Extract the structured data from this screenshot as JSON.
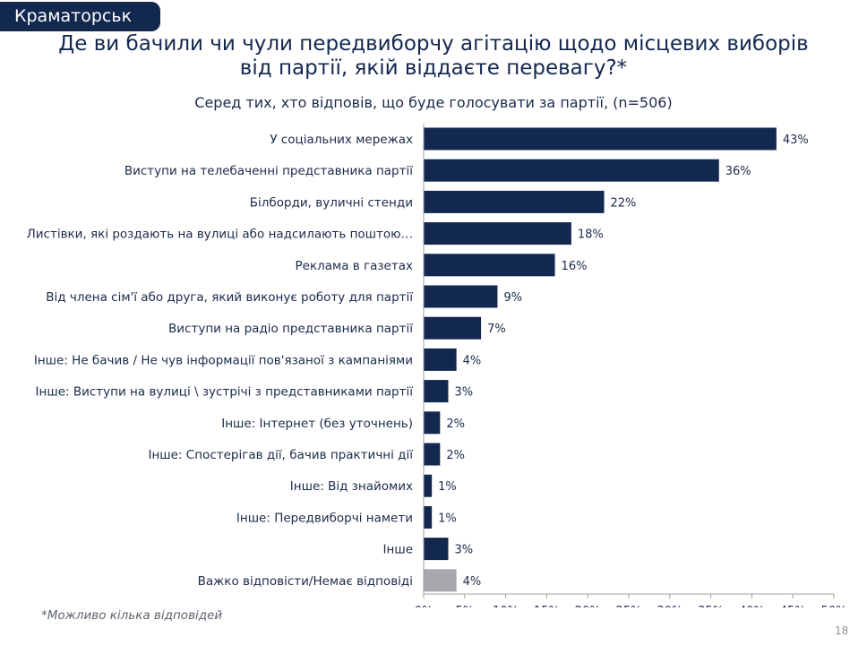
{
  "header": {
    "city": "Краматорськ",
    "title_line1": "Де ви бачили чи чули передвиборчу агітацію щодо місцевих виборів",
    "title_line2": "від партії, якій віддаєте перевагу?*",
    "subtitle": "Серед тих, хто відповів, що буде голосувати за партії, (n=506)"
  },
  "footnote": "*Можливо кілька відповідей",
  "page_number": "18",
  "chart_data": {
    "type": "bar",
    "orientation": "horizontal",
    "categories": [
      "У соціальних мережах",
      "Виступи на телебаченні представника партії",
      "Білборди, вуличні стенди",
      "Листівки, які роздають на вулиці або надсилають поштою…",
      "Реклама в газетах",
      "Від члена сім'ї або друга, який виконує роботу для партії",
      "Виступи на радіо представника партії",
      "Інше: Не бачив / Не чув інформації пов'язаної з кампаніями",
      "Інше: Виступи на вулиці \\ зустрічі з представниками партії",
      "Інше: Інтернет (без уточнень)",
      "Інше: Спостерігав дії, бачив практичні дії",
      "Інше: Від знайомих",
      "Інше: Передвиборчі намети",
      "Інше",
      "Важко відповісти/Немає відповіді"
    ],
    "values": [
      43,
      36,
      22,
      18,
      16,
      9,
      7,
      4,
      3,
      2,
      2,
      1,
      1,
      3,
      4
    ],
    "value_labels": [
      "43%",
      "36%",
      "22%",
      "18%",
      "16%",
      "9%",
      "7%",
      "4%",
      "3%",
      "2%",
      "2%",
      "1%",
      "1%",
      "3%",
      "4%"
    ],
    "bar_colors": [
      "#13284f",
      "#13284f",
      "#13284f",
      "#13284f",
      "#13284f",
      "#13284f",
      "#13284f",
      "#13284f",
      "#13284f",
      "#13284f",
      "#13284f",
      "#13284f",
      "#13284f",
      "#13284f",
      "#a6a8ab"
    ],
    "xlim": [
      0,
      50
    ],
    "x_ticks": [
      0,
      5,
      10,
      15,
      20,
      25,
      30,
      35,
      40,
      45,
      50
    ],
    "x_tick_labels": [
      "0%",
      "5%",
      "10%",
      "15%",
      "20%",
      "25%",
      "30%",
      "35%",
      "40%",
      "45%",
      "50%"
    ],
    "grid": false
  }
}
